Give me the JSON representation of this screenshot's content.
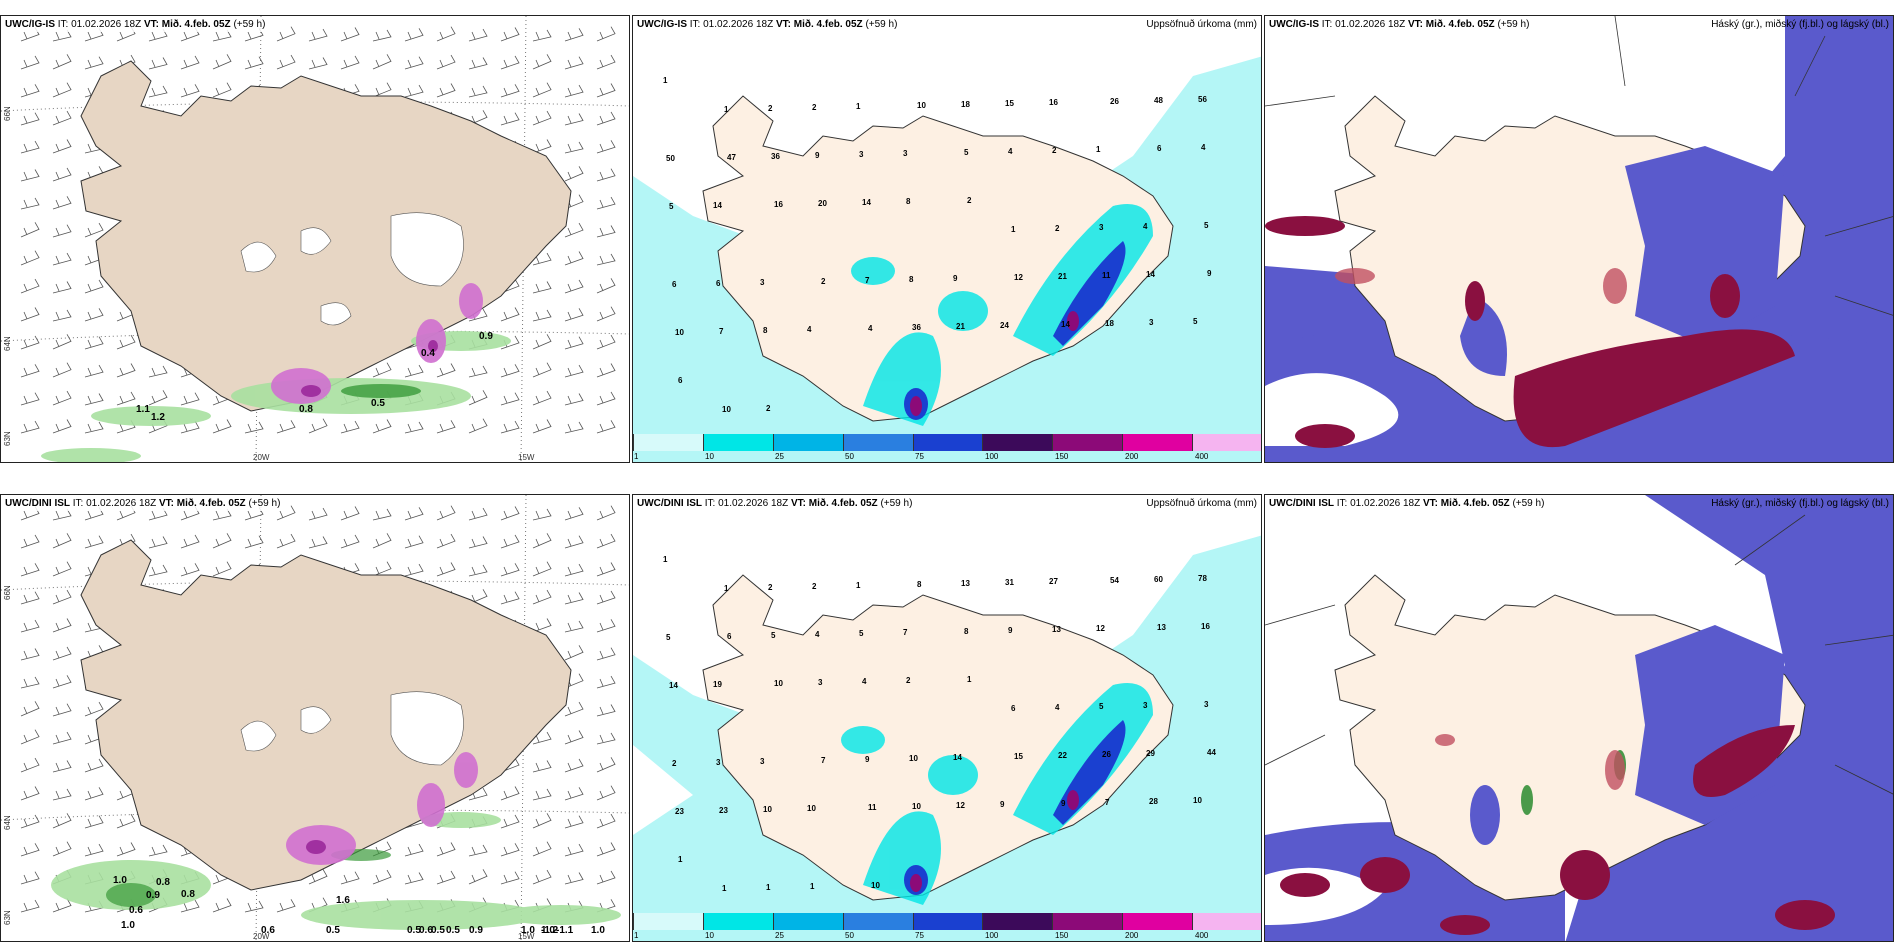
{
  "panels": [
    {
      "id": "p1",
      "model": "UWC/IG-IS",
      "it_label": "IT:",
      "it_value": "01.02.2026 18Z",
      "vt_label": "VT:",
      "vt_value": "Mið. 4.feb. 05Z",
      "lead": "(+59 h)",
      "right": ""
    },
    {
      "id": "p2",
      "model": "UWC/IG-IS",
      "it_label": "IT:",
      "it_value": "01.02.2026 18Z",
      "vt_label": "VT:",
      "vt_value": "Mið. 4.feb. 05Z",
      "lead": "(+59 h)",
      "right": "Uppsöfnuð úrkoma (mm)"
    },
    {
      "id": "p3",
      "model": "UWC/IG-IS",
      "it_label": "IT:",
      "it_value": "01.02.2026 18Z",
      "vt_label": "VT:",
      "vt_value": "Mið. 4.feb. 05Z",
      "lead": "(+59 h)",
      "right": "Háský (gr.), miðský (fj.bl.) og lágský (bl.)"
    },
    {
      "id": "p4",
      "model": "UWC/DINI ISL",
      "it_label": "IT:",
      "it_value": "01.02.2026 18Z",
      "vt_label": "VT:",
      "vt_value": "Mið. 4.feb. 05Z",
      "lead": "(+59 h)",
      "right": ""
    },
    {
      "id": "p5",
      "model": "UWC/DINI ISL",
      "it_label": "IT:",
      "it_value": "01.02.2026 18Z",
      "vt_label": "VT:",
      "vt_value": "Mið. 4.feb. 05Z",
      "lead": "(+59 h)",
      "right": "Uppsöfnuð úrkoma (mm)"
    },
    {
      "id": "p6",
      "model": "UWC/DINI ISL",
      "it_label": "IT:",
      "it_value": "01.02.2026 18Z",
      "vt_label": "VT:",
      "vt_value": "Mið. 4.feb. 05Z",
      "lead": "(+59 h)",
      "right": "Háský (gr.), miðský (fj.bl.) og lágský (bl.)"
    }
  ],
  "axis_labels": {
    "lat66": "66N",
    "lat64": "64N",
    "lat63": "63N",
    "lon20": "20W",
    "lon15": "15W"
  },
  "legend": {
    "ticks": [
      "1",
      "10",
      "25",
      "50",
      "75",
      "100",
      "150",
      "200",
      "400"
    ],
    "colors": [
      "#d7fafa",
      "#00e6e6",
      "#00b4e6",
      "#2a7fe0",
      "#1a40d0",
      "#3c0a5a",
      "#8c0a78",
      "#e000a0",
      "#f5b4f0"
    ]
  },
  "colors": {
    "land": "#fdf0e3",
    "land_wind": "#e7d6c4",
    "sea_precip": "#b4f6f6",
    "high_cloud": "#b04040",
    "mid_cloud": "#5a5acc",
    "low_cloud": "#2a50ff"
  },
  "wind_numbers_top": [
    "1.1",
    "1.2",
    "0.9",
    "0.5",
    "0.8",
    "0.4"
  ],
  "wind_numbers_bottom": [
    "1.0",
    "0.8",
    "0.9",
    "0.8",
    "0.6",
    "1.0",
    "0.5",
    "0.6",
    "0.6",
    "0.5",
    "0.5",
    "1.0",
    "1.0",
    "1.0",
    "-1.2",
    "-1.1",
    "0.9",
    "0.5",
    "1.6"
  ],
  "precip_numbers_top": [
    "1",
    "1",
    "2",
    "2",
    "1",
    "10",
    "18",
    "15",
    "16",
    "26",
    "48",
    "56",
    "50",
    "47",
    "36",
    "9",
    "3",
    "3",
    "5",
    "4",
    "2",
    "1",
    "6",
    "4",
    "5",
    "14",
    "16",
    "20",
    "14",
    "8",
    "2",
    "1",
    "2",
    "3",
    "4",
    "5",
    "6",
    "6",
    "3",
    "2",
    "7",
    "8",
    "9",
    "12",
    "21",
    "11",
    "14",
    "9",
    "10",
    "7",
    "8",
    "4",
    "4",
    "36",
    "21",
    "24",
    "14",
    "18",
    "3",
    "5",
    "6",
    "10",
    "2"
  ],
  "precip_numbers_bottom": [
    "1",
    "1",
    "2",
    "2",
    "1",
    "8",
    "13",
    "31",
    "27",
    "54",
    "60",
    "78",
    "5",
    "6",
    "5",
    "4",
    "5",
    "7",
    "8",
    "9",
    "13",
    "12",
    "13",
    "16",
    "14",
    "19",
    "10",
    "3",
    "4",
    "2",
    "1",
    "6",
    "4",
    "5",
    "3",
    "3",
    "2",
    "3",
    "3",
    "7",
    "9",
    "10",
    "14",
    "15",
    "22",
    "26",
    "29",
    "44",
    "23",
    "23",
    "10",
    "10",
    "11",
    "10",
    "12",
    "9",
    "9",
    "7",
    "28",
    "10",
    "1",
    "1",
    "1",
    "1",
    "10"
  ]
}
